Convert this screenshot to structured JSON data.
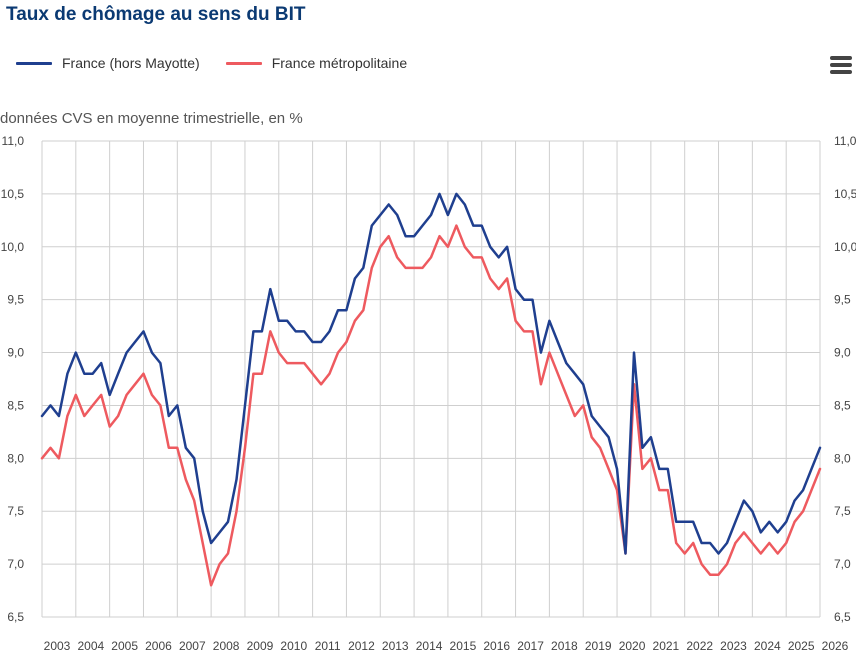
{
  "title": "Taux de chômage au sens du BIT",
  "subtitle": "données CVS en moyenne trimestrielle, en %",
  "menu_icon": "hamburger-menu-icon",
  "chart_data": {
    "type": "line",
    "title": "Taux de chômage au sens du BIT",
    "subtitle": "données CVS en moyenne trimestrielle, en %",
    "xlabel": "",
    "ylabel": "",
    "ylim": [
      6.5,
      11.0
    ],
    "yticks": [
      "6,5",
      "7,0",
      "7,5",
      "8,0",
      "8,5",
      "9,0",
      "9,5",
      "10,0",
      "10,5",
      "11,0"
    ],
    "y_axis_both_sides": true,
    "xlim": [
      2003,
      2026
    ],
    "xticks": [
      "2003",
      "2004",
      "2005",
      "2006",
      "2007",
      "2008",
      "2009",
      "2010",
      "2011",
      "2012",
      "2013",
      "2014",
      "2015",
      "2016",
      "2017",
      "2018",
      "2019",
      "2020",
      "2021",
      "2022",
      "2023",
      "2024",
      "2025",
      "2026"
    ],
    "grid": true,
    "legend_position": "top-left",
    "x_start": 2003.0,
    "x_step": 0.25,
    "series": [
      {
        "name": "France (hors Mayotte)",
        "color": "#1f3f8f",
        "values": [
          8.4,
          8.5,
          8.4,
          8.8,
          9.0,
          8.8,
          8.8,
          8.9,
          8.6,
          8.8,
          9.0,
          9.1,
          9.2,
          9.0,
          8.9,
          8.4,
          8.5,
          8.1,
          8.0,
          7.5,
          7.2,
          7.3,
          7.4,
          7.8,
          8.5,
          9.2,
          9.2,
          9.6,
          9.3,
          9.3,
          9.2,
          9.2,
          9.1,
          9.1,
          9.2,
          9.4,
          9.4,
          9.7,
          9.8,
          10.2,
          10.3,
          10.4,
          10.3,
          10.1,
          10.1,
          10.2,
          10.3,
          10.5,
          10.3,
          10.5,
          10.4,
          10.2,
          10.2,
          10.0,
          9.9,
          10.0,
          9.6,
          9.5,
          9.5,
          9.0,
          9.3,
          9.1,
          8.9,
          8.8,
          8.7,
          8.4,
          8.3,
          8.2,
          7.9,
          7.1,
          9.0,
          8.1,
          8.2,
          7.9,
          7.9,
          7.4,
          7.4,
          7.4,
          7.2,
          7.2,
          7.1,
          7.2,
          7.4,
          7.6,
          7.5,
          7.3,
          7.4,
          7.3,
          7.4,
          7.6,
          7.7,
          7.9,
          8.1
        ]
      },
      {
        "name": "France métropolitaine",
        "color": "#ee5a5f",
        "values": [
          8.0,
          8.1,
          8.0,
          8.4,
          8.6,
          8.4,
          8.5,
          8.6,
          8.3,
          8.4,
          8.6,
          8.7,
          8.8,
          8.6,
          8.5,
          8.1,
          8.1,
          7.8,
          7.6,
          7.2,
          6.8,
          7.0,
          7.1,
          7.5,
          8.1,
          8.8,
          8.8,
          9.2,
          9.0,
          8.9,
          8.9,
          8.9,
          8.8,
          8.7,
          8.8,
          9.0,
          9.1,
          9.3,
          9.4,
          9.8,
          10.0,
          10.1,
          9.9,
          9.8,
          9.8,
          9.8,
          9.9,
          10.1,
          10.0,
          10.2,
          10.0,
          9.9,
          9.9,
          9.7,
          9.6,
          9.7,
          9.3,
          9.2,
          9.2,
          8.7,
          9.0,
          8.8,
          8.6,
          8.4,
          8.5,
          8.2,
          8.1,
          7.9,
          7.7,
          7.1,
          8.7,
          7.9,
          8.0,
          7.7,
          7.7,
          7.2,
          7.1,
          7.2,
          7.0,
          6.9,
          6.9,
          7.0,
          7.2,
          7.3,
          7.2,
          7.1,
          7.2,
          7.1,
          7.2,
          7.4,
          7.5,
          7.7,
          7.9
        ]
      }
    ]
  }
}
